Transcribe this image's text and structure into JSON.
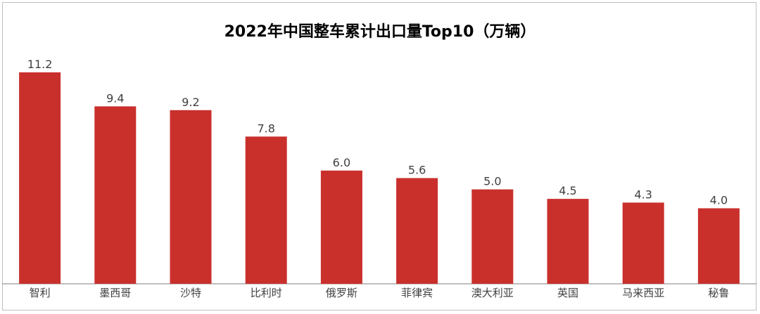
{
  "chart_data": {
    "type": "bar",
    "title": "2022年中国整车累计出口量Top10（万辆）",
    "categories": [
      "智利",
      "墨西哥",
      "沙特",
      "比利时",
      "俄罗斯",
      "菲律宾",
      "澳大利亚",
      "英国",
      "马来西亚",
      "秘鲁"
    ],
    "values": [
      11.2,
      9.4,
      9.2,
      7.8,
      6.0,
      5.6,
      5.0,
      4.5,
      4.3,
      4.0
    ],
    "value_labels": [
      "11.2",
      "9.4",
      "9.2",
      "7.8",
      "6.0",
      "5.6",
      "5.0",
      "4.5",
      "4.3",
      "4.0"
    ],
    "bar_color": "#c9302c",
    "axis_color": "#7f7f7f",
    "ylim": [
      0,
      12
    ],
    "grid": false,
    "legend": "none",
    "xlabel": "",
    "ylabel": ""
  }
}
